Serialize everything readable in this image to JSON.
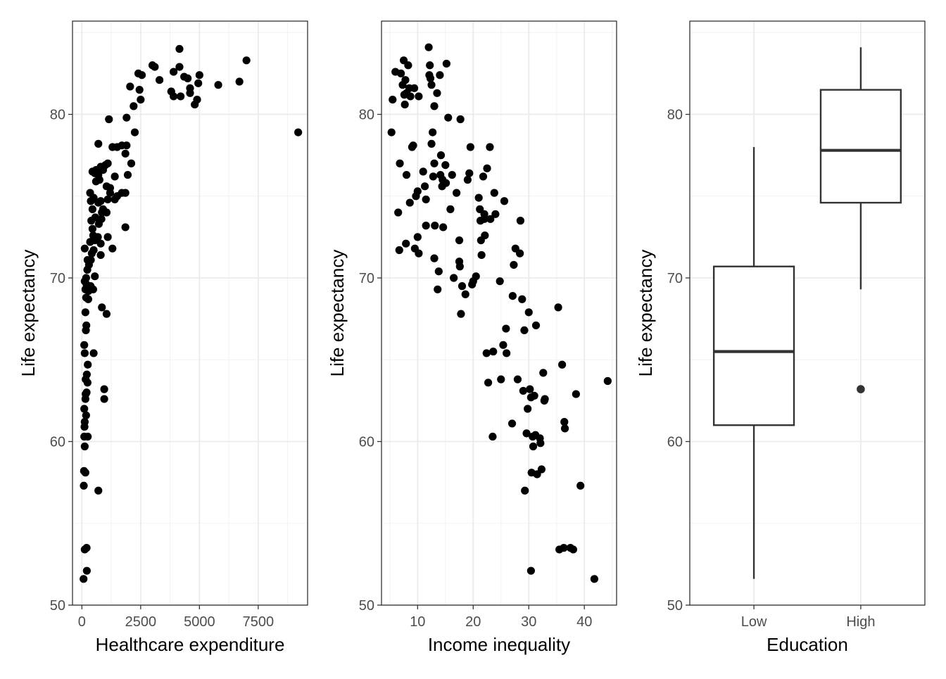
{
  "chart_data": [
    {
      "type": "scatter",
      "title": "",
      "xlabel": "Healthcare expenditure",
      "ylabel": "Life expectancy",
      "xlim": [
        -400,
        9600
      ],
      "ylim": [
        50,
        85.7
      ],
      "x_ticks": [
        0,
        2500,
        5000,
        7500
      ],
      "x_tick_labels": [
        "0",
        "2500",
        "5000",
        "7500"
      ],
      "y_ticks": [
        50,
        60,
        70,
        80
      ],
      "y_tick_labels": [
        "50",
        "60",
        "70",
        "80"
      ],
      "grid": true,
      "points": [
        [
          70,
          51.6
        ],
        [
          120,
          53.4
        ],
        [
          200,
          53.5
        ],
        [
          210,
          52.1
        ],
        [
          700,
          57.0
        ],
        [
          80,
          57.3
        ],
        [
          90,
          58.2
        ],
        [
          150,
          58.1
        ],
        [
          120,
          59.7
        ],
        [
          100,
          60.3
        ],
        [
          110,
          60.9
        ],
        [
          120,
          61.2
        ],
        [
          250,
          60.3
        ],
        [
          180,
          61.6
        ],
        [
          100,
          62.0
        ],
        [
          150,
          62.6
        ],
        [
          160,
          62.9
        ],
        [
          200,
          63.0
        ],
        [
          160,
          63.8
        ],
        [
          240,
          63.6
        ],
        [
          210,
          64.1
        ],
        [
          250,
          64.7
        ],
        [
          120,
          65.4
        ],
        [
          100,
          65.9
        ],
        [
          500,
          65.4
        ],
        [
          170,
          66.8
        ],
        [
          190,
          67.1
        ],
        [
          150,
          67.9
        ],
        [
          180,
          68.8
        ],
        [
          270,
          68.7
        ],
        [
          280,
          69.2
        ],
        [
          150,
          69.3
        ],
        [
          120,
          69.8
        ],
        [
          200,
          69.6
        ],
        [
          180,
          70.0
        ],
        [
          480,
          69.3
        ],
        [
          370,
          69.5
        ],
        [
          550,
          70.1
        ],
        [
          230,
          70.5
        ],
        [
          240,
          71.1
        ],
        [
          300,
          70.8
        ],
        [
          380,
          71.1
        ],
        [
          120,
          71.8
        ],
        [
          420,
          71.5
        ],
        [
          500,
          71.7
        ],
        [
          800,
          71.4
        ],
        [
          1300,
          71.8
        ],
        [
          350,
          72.2
        ],
        [
          480,
          72.6
        ],
        [
          550,
          72.3
        ],
        [
          680,
          72.5
        ],
        [
          800,
          72.1
        ],
        [
          1100,
          72.5
        ],
        [
          450,
          73.0
        ],
        [
          400,
          73.5
        ],
        [
          570,
          73.7
        ],
        [
          720,
          73.3
        ],
        [
          830,
          73.6
        ],
        [
          850,
          74.0
        ],
        [
          900,
          74.2
        ],
        [
          1050,
          74.0
        ],
        [
          450,
          74.2
        ],
        [
          500,
          74.9
        ],
        [
          380,
          74.7
        ],
        [
          350,
          75.2
        ],
        [
          700,
          74.6
        ],
        [
          800,
          74.7
        ],
        [
          1100,
          74.8
        ],
        [
          1200,
          75.2
        ],
        [
          1400,
          74.8
        ],
        [
          1500,
          75.0
        ],
        [
          1700,
          75.2
        ],
        [
          1850,
          75.2
        ],
        [
          600,
          75.9
        ],
        [
          750,
          76.0
        ],
        [
          700,
          76.3
        ],
        [
          450,
          76.5
        ],
        [
          550,
          76.4
        ],
        [
          900,
          76.6
        ],
        [
          1000,
          76.9
        ],
        [
          1100,
          77.0
        ],
        [
          1400,
          76.2
        ],
        [
          1200,
          75.5
        ],
        [
          1050,
          75.6
        ],
        [
          600,
          76.6
        ],
        [
          800,
          76.8
        ],
        [
          700,
          78.2
        ],
        [
          1300,
          78.0
        ],
        [
          1500,
          78.0
        ],
        [
          1700,
          78.1
        ],
        [
          1900,
          78.1
        ],
        [
          1850,
          77.6
        ],
        [
          1950,
          76.3
        ],
        [
          2100,
          77.0
        ],
        [
          1850,
          73.1
        ],
        [
          850,
          68.2
        ],
        [
          1050,
          67.8
        ],
        [
          950,
          63.2
        ],
        [
          950,
          62.6
        ],
        [
          1150,
          79.7
        ],
        [
          1900,
          79.8
        ],
        [
          2250,
          78.9
        ],
        [
          2200,
          80.5
        ],
        [
          2500,
          80.9
        ],
        [
          2450,
          81.5
        ],
        [
          2050,
          81.7
        ],
        [
          2400,
          82.5
        ],
        [
          2550,
          82.4
        ],
        [
          3000,
          83.0
        ],
        [
          3100,
          82.9
        ],
        [
          3300,
          82.1
        ],
        [
          3800,
          81.4
        ],
        [
          3900,
          81.1
        ],
        [
          3900,
          82.6
        ],
        [
          4150,
          82.9
        ],
        [
          4150,
          84.0
        ],
        [
          4200,
          81.1
        ],
        [
          4350,
          82.3
        ],
        [
          4500,
          82.2
        ],
        [
          4600,
          81.6
        ],
        [
          4600,
          81.3
        ],
        [
          4800,
          80.6
        ],
        [
          4900,
          80.9
        ],
        [
          5000,
          82.4
        ],
        [
          4950,
          81.9
        ],
        [
          5800,
          81.8
        ],
        [
          6700,
          82.0
        ],
        [
          7000,
          83.3
        ],
        [
          9200,
          78.9
        ]
      ]
    },
    {
      "type": "scatter",
      "title": "",
      "xlabel": "Income inequality",
      "ylabel": "Life expectancy",
      "xlim": [
        3.5,
        45.8
      ],
      "ylim": [
        50,
        85.7
      ],
      "x_ticks": [
        10,
        20,
        30,
        40
      ],
      "x_tick_labels": [
        "10",
        "20",
        "30",
        "40"
      ],
      "y_ticks": [
        50,
        60,
        70,
        80
      ],
      "y_tick_labels": [
        "50",
        "60",
        "70",
        "80"
      ],
      "grid": true,
      "points": [
        [
          5.5,
          80.9
        ],
        [
          5.3,
          78.9
        ],
        [
          6.0,
          82.6
        ],
        [
          6.5,
          74.0
        ],
        [
          6.7,
          71.7
        ],
        [
          6.8,
          77.0
        ],
        [
          7.0,
          82.5
        ],
        [
          7.3,
          81.8
        ],
        [
          7.5,
          83.3
        ],
        [
          7.6,
          81.2
        ],
        [
          7.7,
          80.6
        ],
        [
          7.8,
          82.1
        ],
        [
          8.0,
          81.3
        ],
        [
          8.0,
          76.3
        ],
        [
          7.9,
          72.1
        ],
        [
          8.3,
          83.0
        ],
        [
          8.5,
          81.6
        ],
        [
          8.6,
          74.6
        ],
        [
          8.7,
          81.1
        ],
        [
          9.0,
          78.0
        ],
        [
          9.2,
          78.1
        ],
        [
          9.5,
          71.8
        ],
        [
          9.4,
          81.6
        ],
        [
          9.7,
          75.0
        ],
        [
          10.0,
          75.3
        ],
        [
          10.0,
          72.5
        ],
        [
          10.2,
          81.1
        ],
        [
          10.2,
          71.5
        ],
        [
          11.0,
          76.5
        ],
        [
          11.3,
          75.6
        ],
        [
          11.5,
          74.8
        ],
        [
          11.5,
          73.2
        ],
        [
          12.0,
          84.1
        ],
        [
          12.1,
          82.4
        ],
        [
          12.2,
          83.0
        ],
        [
          12.3,
          82.2
        ],
        [
          12.5,
          78.2
        ],
        [
          12.5,
          81.8
        ],
        [
          12.7,
          78.9
        ],
        [
          12.8,
          76.2
        ],
        [
          13.0,
          80.5
        ],
        [
          13.0,
          77.0
        ],
        [
          13.1,
          73.2
        ],
        [
          13.0,
          71.2
        ],
        [
          13.5,
          81.3
        ],
        [
          13.6,
          69.3
        ],
        [
          13.8,
          70.4
        ],
        [
          14.0,
          82.4
        ],
        [
          14.1,
          76.3
        ],
        [
          14.2,
          77.5
        ],
        [
          14.4,
          75.6
        ],
        [
          14.5,
          76.0
        ],
        [
          14.6,
          73.1
        ],
        [
          15.0,
          76.9
        ],
        [
          15.1,
          75.8
        ],
        [
          15.2,
          83.1
        ],
        [
          15.5,
          79.8
        ],
        [
          15.9,
          74.2
        ],
        [
          16.2,
          76.3
        ],
        [
          16.5,
          70.0
        ],
        [
          17.0,
          75.2
        ],
        [
          17.5,
          72.3
        ],
        [
          17.5,
          71.0
        ],
        [
          17.6,
          70.7
        ],
        [
          17.7,
          79.7
        ],
        [
          17.8,
          67.8
        ],
        [
          18.0,
          69.5
        ],
        [
          18.6,
          69.0
        ],
        [
          19.0,
          76.0
        ],
        [
          19.3,
          76.4
        ],
        [
          19.5,
          78.0
        ],
        [
          19.8,
          69.6
        ],
        [
          20.0,
          69.8
        ],
        [
          20.5,
          70.1
        ],
        [
          21.0,
          74.9
        ],
        [
          21.2,
          74.2
        ],
        [
          21.3,
          73.5
        ],
        [
          21.4,
          72.3
        ],
        [
          21.5,
          71.4
        ],
        [
          21.8,
          76.2
        ],
        [
          22.0,
          73.9
        ],
        [
          22.0,
          73.6
        ],
        [
          22.1,
          72.6
        ],
        [
          22.5,
          76.7
        ],
        [
          22.4,
          65.4
        ],
        [
          22.7,
          63.6
        ],
        [
          23.0,
          78.0
        ],
        [
          23.1,
          73.6
        ],
        [
          23.5,
          60.3
        ],
        [
          23.6,
          65.5
        ],
        [
          23.8,
          75.2
        ],
        [
          24.0,
          73.9
        ],
        [
          24.8,
          69.8
        ],
        [
          25.0,
          63.8
        ],
        [
          25.4,
          65.9
        ],
        [
          25.6,
          74.7
        ],
        [
          25.9,
          66.9
        ],
        [
          26.0,
          65.4
        ],
        [
          27.0,
          61.1
        ],
        [
          27.1,
          68.9
        ],
        [
          27.3,
          70.8
        ],
        [
          27.6,
          71.8
        ],
        [
          28.0,
          63.8
        ],
        [
          28.4,
          71.5
        ],
        [
          28.5,
          73.5
        ],
        [
          28.8,
          68.7
        ],
        [
          29.0,
          63.1
        ],
        [
          29.2,
          66.8
        ],
        [
          29.3,
          57.0
        ],
        [
          29.8,
          62.0
        ],
        [
          29.6,
          60.5
        ],
        [
          30.0,
          67.9
        ],
        [
          30.2,
          63.2
        ],
        [
          30.4,
          62.7
        ],
        [
          30.5,
          58.1
        ],
        [
          30.4,
          52.1
        ],
        [
          30.7,
          60.3
        ],
        [
          30.8,
          59.7
        ],
        [
          31.0,
          62.8
        ],
        [
          31.2,
          60.4
        ],
        [
          31.3,
          67.1
        ],
        [
          31.5,
          58.0
        ],
        [
          32.0,
          60.2
        ],
        [
          32.1,
          59.9
        ],
        [
          32.3,
          58.3
        ],
        [
          32.6,
          64.2
        ],
        [
          32.8,
          62.5
        ],
        [
          32.9,
          62.6
        ],
        [
          35.3,
          68.2
        ],
        [
          35.5,
          53.4
        ],
        [
          36.0,
          64.7
        ],
        [
          36.3,
          53.5
        ],
        [
          36.4,
          61.2
        ],
        [
          36.5,
          60.8
        ],
        [
          37.5,
          53.5
        ],
        [
          38.5,
          62.9
        ],
        [
          38.0,
          53.4
        ],
        [
          39.3,
          57.3
        ],
        [
          41.8,
          51.6
        ],
        [
          44.2,
          63.7
        ]
      ]
    },
    {
      "type": "box",
      "title": "",
      "xlabel": "Education",
      "ylabel": "Life expectancy",
      "ylim": [
        50,
        85.7
      ],
      "y_ticks": [
        50,
        60,
        70,
        80
      ],
      "y_tick_labels": [
        "50",
        "60",
        "70",
        "80"
      ],
      "categories": [
        "Low",
        "High"
      ],
      "grid": true,
      "boxes": [
        {
          "category": "Low",
          "whisker_low": 51.6,
          "q1": 61.0,
          "median": 65.5,
          "q3": 70.7,
          "whisker_high": 78.0,
          "outliers": []
        },
        {
          "category": "High",
          "whisker_low": 69.3,
          "q1": 74.6,
          "median": 77.8,
          "q3": 81.5,
          "whisker_high": 84.1,
          "outliers": [
            63.2
          ]
        }
      ]
    }
  ]
}
